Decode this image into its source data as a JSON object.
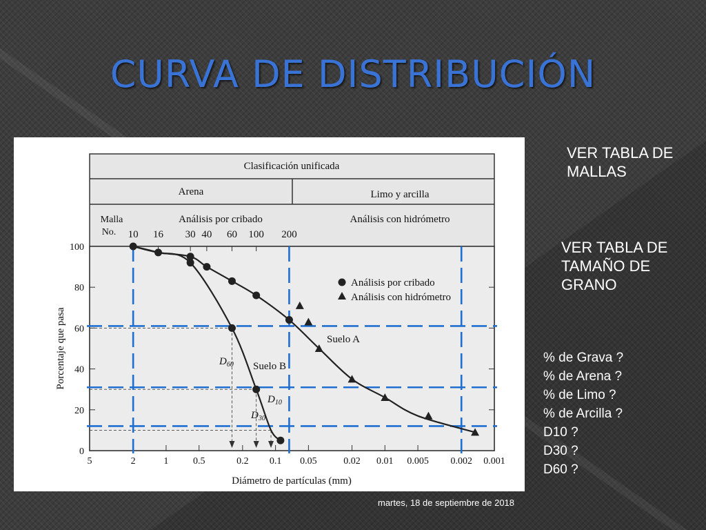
{
  "slide": {
    "title": "CURVA DE DISTRIBUCIÓN",
    "notes": [
      "VER TABLA DE MALLAS",
      "VER TABLA DE TAMAÑO DE GRANO"
    ],
    "questions": [
      "% de Grava ?",
      "% de Arena ?",
      "% de Limo ?",
      "% de Arcilla ?",
      "D10 ?",
      "D30 ?",
      "D60 ?"
    ],
    "date": "martes, 18 de septiembre de 2018",
    "colors": {
      "background": "#3d3d3d",
      "title": "#3a73d6",
      "overlay_lines": "#1f6fd1",
      "text": "#ffffff"
    }
  },
  "chart_data": {
    "type": "line",
    "header": {
      "top": "Clasificación unificada",
      "left": "Arena",
      "right": "Limo y arcilla",
      "malla": "Malla No.",
      "sieve_title": "Análisis por cribado",
      "hydro_title": "Análisis con hidrómetro"
    },
    "mesh_numbers": [
      {
        "no": "10",
        "d": 2.0
      },
      {
        "no": "16",
        "d": 1.18
      },
      {
        "no": "30",
        "d": 0.6
      },
      {
        "no": "40",
        "d": 0.425
      },
      {
        "no": "60",
        "d": 0.25
      },
      {
        "no": "100",
        "d": 0.15
      },
      {
        "no": "200",
        "d": 0.075
      }
    ],
    "xlabel": "Diámetro de partículas (mm)",
    "ylabel": "Porcentaje que pasa",
    "x_scale": "log-reversed",
    "xlim": [
      5,
      0.001
    ],
    "ylim": [
      0,
      100
    ],
    "x_ticks": [
      {
        "v": 5,
        "label": "5"
      },
      {
        "v": 2,
        "label": "2"
      },
      {
        "v": 1,
        "label": "1"
      },
      {
        "v": 0.5,
        "label": "0.5"
      },
      {
        "v": 0.2,
        "label": "0.2"
      },
      {
        "v": 0.1,
        "label": "0.1"
      },
      {
        "v": 0.05,
        "label": "0.05"
      },
      {
        "v": 0.02,
        "label": "0.02"
      },
      {
        "v": 0.01,
        "label": "0.01"
      },
      {
        "v": 0.005,
        "label": "0.005"
      },
      {
        "v": 0.002,
        "label": "0.002"
      },
      {
        "v": 0.001,
        "label": "0.001"
      }
    ],
    "y_ticks": [
      0,
      20,
      40,
      60,
      80,
      100
    ],
    "legend": [
      {
        "marker": "circle",
        "label": "Análisis por cribado"
      },
      {
        "marker": "triangle",
        "label": "Análisis con hidrómetro"
      }
    ],
    "legend_position": "upper-right",
    "series": [
      {
        "name": "Suelo A",
        "curve": [
          [
            2.0,
            100
          ],
          [
            1.18,
            97
          ],
          [
            0.6,
            95
          ],
          [
            0.425,
            90
          ],
          [
            0.25,
            83
          ],
          [
            0.15,
            76
          ],
          [
            0.075,
            64
          ],
          [
            0.04,
            50
          ],
          [
            0.02,
            35
          ],
          [
            0.01,
            26
          ],
          [
            0.005,
            17
          ],
          [
            0.0015,
            9
          ]
        ],
        "sieve_points": [
          [
            2.0,
            100
          ],
          [
            1.18,
            97
          ],
          [
            0.6,
            95
          ],
          [
            0.425,
            90
          ],
          [
            0.25,
            83
          ],
          [
            0.15,
            76
          ],
          [
            0.075,
            64
          ]
        ],
        "hydrometer_points": [
          [
            0.06,
            71
          ],
          [
            0.05,
            63
          ],
          [
            0.04,
            50
          ],
          [
            0.02,
            35
          ],
          [
            0.01,
            26
          ],
          [
            0.004,
            17
          ],
          [
            0.0015,
            9
          ]
        ]
      },
      {
        "name": "Suelo B",
        "curve": [
          [
            2.0,
            100
          ],
          [
            1.18,
            97
          ],
          [
            0.6,
            92
          ],
          [
            0.25,
            60
          ],
          [
            0.15,
            30
          ],
          [
            0.11,
            10
          ],
          [
            0.09,
            5
          ]
        ],
        "sieve_points": [
          [
            0.6,
            92
          ],
          [
            0.25,
            60
          ],
          [
            0.15,
            30
          ],
          [
            0.09,
            5
          ]
        ],
        "hydrometer_points": []
      }
    ],
    "d_annotations": [
      {
        "label": "D",
        "sub": "60",
        "d": 0.25,
        "p": 60
      },
      {
        "label": "D",
        "sub": "30",
        "d": 0.15,
        "p": 30
      },
      {
        "label": "D",
        "sub": "10",
        "d": 0.11,
        "p": 10
      }
    ],
    "overlay_lines": {
      "horizontal_percent": [
        61,
        31,
        12
      ],
      "vertical_diameter": [
        2.0,
        0.075,
        0.002
      ]
    }
  }
}
